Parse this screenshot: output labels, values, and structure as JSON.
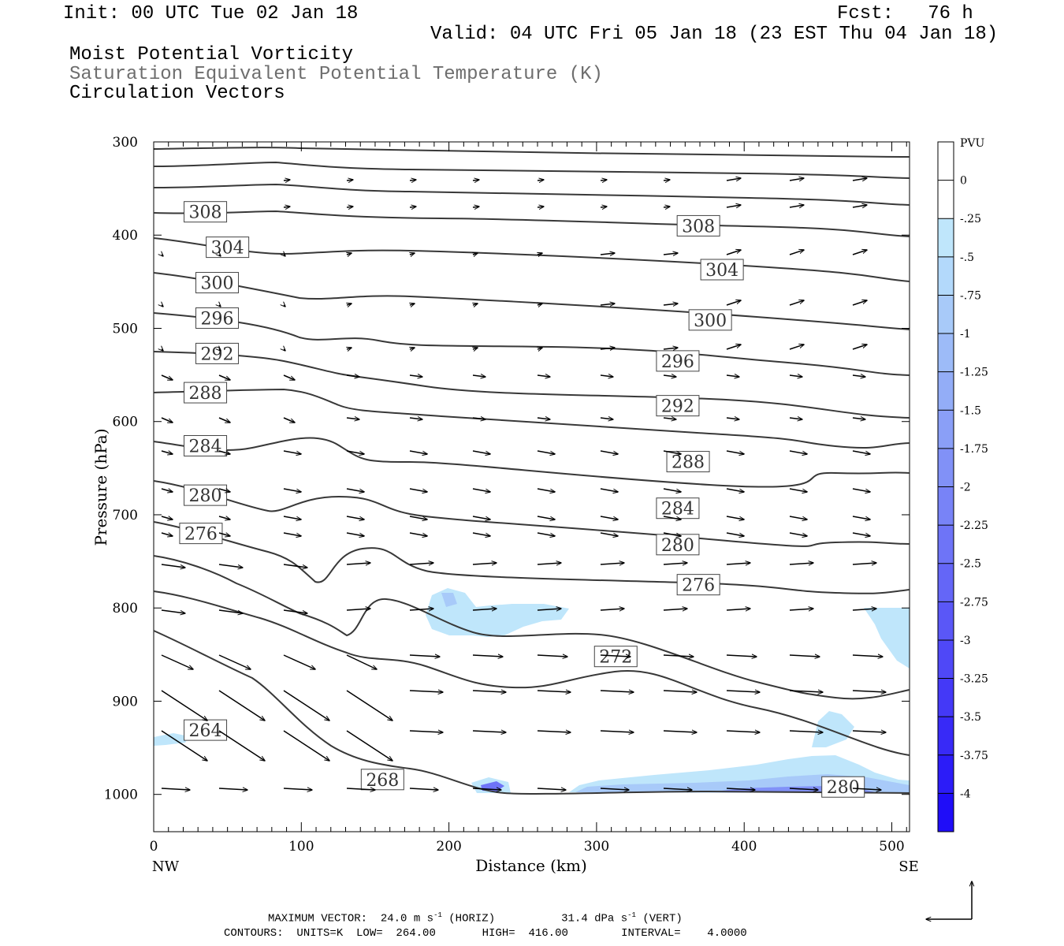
{
  "header": {
    "init": "Init: 00 UTC Tue 02 Jan 18",
    "fcst": "Fcst:   76 h",
    "valid": "Valid: 04 UTC Fri 05 Jan 18 (23 EST Thu 04 Jan 18)",
    "line1": "Moist Potential Vorticity",
    "line2": "Saturation Equivalent Potential Temperature (K)",
    "line3": "Circulation Vectors"
  },
  "footer": {
    "max_vector_label": "MAXIMUM VECTOR:",
    "horiz_value": "24.0 m s",
    "horiz_unit": "(HORIZ)",
    "vert_value": "31.4 dPa s",
    "vert_unit": "(VERT)",
    "exponent": "-1",
    "contours": "CONTOURS:  UNITS=K  LOW=  264.00       HIGH=  416.00        INTERVAL=    4.0000"
  },
  "chart_data": {
    "type": "cross-section",
    "xlabel": "Distance (km)",
    "ylabel": "Pressure (hPa)",
    "xlim": [
      0,
      512
    ],
    "ylim": [
      300,
      1040
    ],
    "x_ticks": [
      0,
      100,
      200,
      300,
      400,
      500
    ],
    "y_ticks": [
      300,
      400,
      500,
      600,
      700,
      800,
      900,
      1000
    ],
    "left_end_label": "NW",
    "right_end_label": "SE",
    "colorbar": {
      "unit": "PVU",
      "labels": [
        "0",
        "-.25",
        "-.5",
        "-.75",
        "-1",
        "-1.25",
        "-1.5",
        "-1.75",
        "-2",
        "-2.25",
        "-2.5",
        "-2.75",
        "-3",
        "-3.25",
        "-3.5",
        "-3.75",
        "-4"
      ],
      "colors": [
        "#ffffff",
        "#ffffff",
        "#bfe6fb",
        "#b3d9fb",
        "#a8caf9",
        "#9dbbf8",
        "#93adf7",
        "#8a9ff7",
        "#8191f7",
        "#7883f7",
        "#6e74f7",
        "#6466f7",
        "#5a57f7",
        "#4f48f7",
        "#4439f7",
        "#382af7",
        "#2c1cf8",
        "#1f0df8"
      ]
    },
    "contour_labels": [
      {
        "text": "308",
        "x": 35,
        "p": 375
      },
      {
        "text": "304",
        "x": 50,
        "p": 413
      },
      {
        "text": "300",
        "x": 43,
        "p": 451
      },
      {
        "text": "296",
        "x": 43,
        "p": 489
      },
      {
        "text": "292",
        "x": 43,
        "p": 527
      },
      {
        "text": "288",
        "x": 35,
        "p": 569
      },
      {
        "text": "284",
        "x": 35,
        "p": 626
      },
      {
        "text": "280",
        "x": 35,
        "p": 679
      },
      {
        "text": "276",
        "x": 32,
        "p": 720
      },
      {
        "text": "264",
        "x": 35,
        "p": 931
      },
      {
        "text": "268",
        "x": 155,
        "p": 984
      },
      {
        "text": "308",
        "x": 369,
        "p": 390
      },
      {
        "text": "304",
        "x": 385,
        "p": 437
      },
      {
        "text": "300",
        "x": 377,
        "p": 491
      },
      {
        "text": "296",
        "x": 355,
        "p": 535
      },
      {
        "text": "292",
        "x": 355,
        "p": 583
      },
      {
        "text": "288",
        "x": 362,
        "p": 643
      },
      {
        "text": "284",
        "x": 355,
        "p": 693
      },
      {
        "text": "280",
        "x": 355,
        "p": 732
      },
      {
        "text": "276",
        "x": 369,
        "p": 775
      },
      {
        "text": "272",
        "x": 313,
        "p": 852
      },
      {
        "text": "280",
        "x": 467,
        "p": 992
      }
    ]
  }
}
